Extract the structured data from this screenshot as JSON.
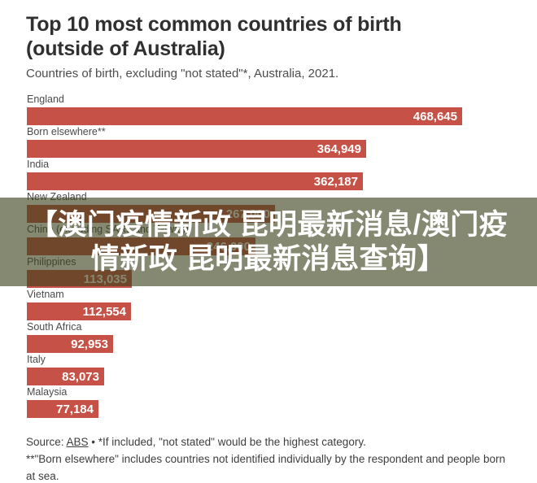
{
  "header": {
    "title_line1": "Top 10 most common countries of birth",
    "title_line2": "(outside of Australia)",
    "subtitle": "Countries of birth, excluding \"not stated\"*, Australia, 2021."
  },
  "chart_data": {
    "type": "bar",
    "orientation": "horizontal",
    "categories": [
      "England",
      "Born elsewhere**",
      "India",
      "New Zealand",
      "China (excluding SARs and Taiwan)",
      "Philippines",
      "Vietnam",
      "South Africa",
      "Italy",
      "Malaysia"
    ],
    "values": [
      468645,
      364949,
      362187,
      267000,
      246000,
      113035,
      112554,
      92953,
      83073,
      77184
    ],
    "value_labels": [
      "468,645",
      "364,949",
      "362,187",
      "267,000",
      "246,000",
      "113,035",
      "112,554",
      "92,953",
      "83,073",
      "77,184"
    ],
    "estimated_indices": [
      3,
      4
    ],
    "title": "Top 10 most common countries of birth (outside of Australia)",
    "subtitle": "Countries of birth, excluding \"not stated\"*, Australia, 2021.",
    "xlabel": "",
    "ylabel": "",
    "xlim": [
      0,
      470000
    ],
    "grid": false,
    "legend": false,
    "bar_color": "#c65146",
    "value_label_color": "#ffffff",
    "label_color": "#4a4a4a"
  },
  "overlay": {
    "text": "【澳门疫情新政 昆明最新消息/澳门疫情新政 昆明最新消息查询】",
    "background_color": "rgba(60,64,28,0.62)",
    "text_color": "#ffffff"
  },
  "footer": {
    "source_prefix": "Source: ",
    "source_link": "ABS",
    "line1_rest": " • *If included, \"not stated\" would be the highest category.",
    "line2": "**\"Born elsewhere\" includes countries not identified individually by the respondent and people born at sea."
  }
}
